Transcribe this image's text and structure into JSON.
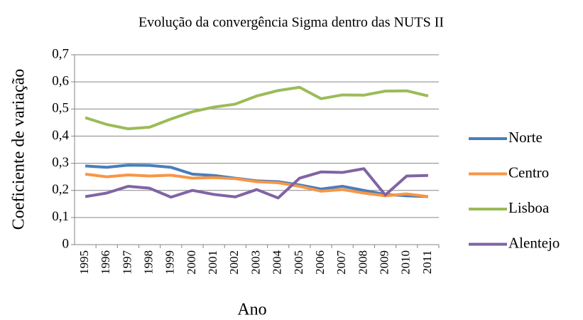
{
  "chart_data": {
    "type": "line",
    "title": "Evolução da convergência Sigma dentro das NUTS II",
    "x_label": "Ano",
    "y_label": "Coeficiente de variação",
    "categories": [
      "1995",
      "1996",
      "1997",
      "1998",
      "1999",
      "2000",
      "2001",
      "2002",
      "2003",
      "2004",
      "2005",
      "2006",
      "2007",
      "2008",
      "2009",
      "2010",
      "2011"
    ],
    "series": [
      {
        "name": "Norte",
        "color": "#4a7ebb",
        "values": [
          0.29,
          0.285,
          0.293,
          0.292,
          0.285,
          0.26,
          0.255,
          0.245,
          0.235,
          0.232,
          0.22,
          0.205,
          0.215,
          0.2,
          0.185,
          0.18,
          0.177
        ]
      },
      {
        "name": "Centro",
        "color": "#f79646",
        "values": [
          0.26,
          0.25,
          0.257,
          0.253,
          0.256,
          0.245,
          0.247,
          0.243,
          0.232,
          0.228,
          0.215,
          0.197,
          0.203,
          0.19,
          0.18,
          0.187,
          0.177
        ]
      },
      {
        "name": "Lisboa",
        "color": "#9bbb59",
        "values": [
          0.468,
          0.443,
          0.427,
          0.433,
          0.463,
          0.49,
          0.507,
          0.518,
          0.548,
          0.568,
          0.58,
          0.538,
          0.552,
          0.551,
          0.566,
          0.567,
          0.548
        ]
      },
      {
        "name": "Alentejo",
        "color": "#8064a2",
        "values": [
          0.177,
          0.19,
          0.215,
          0.208,
          0.175,
          0.2,
          0.185,
          0.176,
          0.203,
          0.172,
          0.245,
          0.268,
          0.266,
          0.28,
          0.183,
          0.253,
          0.255
        ]
      }
    ],
    "ylim": [
      0,
      0.7
    ],
    "yticks": [
      0,
      {
        "value": 0.1,
        "label": "0,1"
      },
      {
        "value": 0.2,
        "label": "0,2"
      },
      {
        "value": 0.3,
        "label": "0,3"
      },
      {
        "value": 0.4,
        "label": "0,4"
      },
      {
        "value": 0.5,
        "label": "0,5"
      },
      {
        "value": 0.6,
        "label": "0,6"
      },
      {
        "value": 0.7,
        "label": "0,7"
      }
    ],
    "grid": true,
    "legend": "right"
  }
}
